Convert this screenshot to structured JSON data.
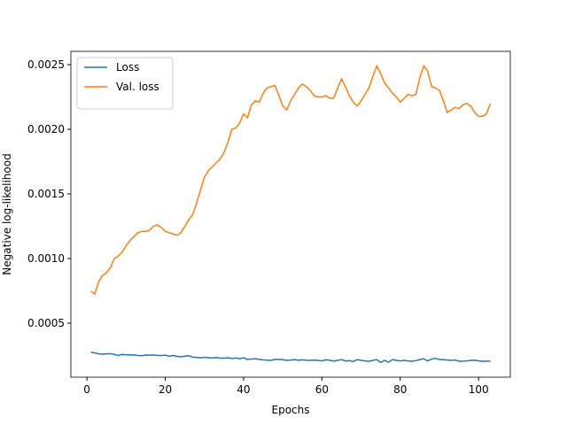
{
  "chart_data": {
    "type": "line",
    "xlabel": "Epochs",
    "ylabel": "Negative log-likelihood",
    "x": [
      1,
      2,
      3,
      4,
      5,
      6,
      7,
      8,
      9,
      10,
      11,
      12,
      13,
      14,
      15,
      16,
      17,
      18,
      19,
      20,
      21,
      22,
      23,
      24,
      25,
      26,
      27,
      28,
      29,
      30,
      31,
      32,
      33,
      34,
      35,
      36,
      37,
      38,
      39,
      40,
      41,
      42,
      43,
      44,
      45,
      46,
      47,
      48,
      49,
      50,
      51,
      52,
      53,
      54,
      55,
      56,
      57,
      58,
      59,
      60,
      61,
      62,
      63,
      64,
      65,
      66,
      67,
      68,
      69,
      70,
      71,
      72,
      73,
      74,
      75,
      76,
      77,
      78,
      79,
      80,
      81,
      82,
      83,
      84,
      85,
      86,
      87,
      88,
      89,
      90,
      91,
      92,
      93,
      94,
      95,
      96,
      97,
      98,
      99,
      100,
      101,
      102,
      103
    ],
    "series": [
      {
        "name": "Loss",
        "color": "#1f77b4",
        "values": [
          0.000275,
          0.00027,
          0.000263,
          0.00026,
          0.000263,
          0.000264,
          0.000258,
          0.00025,
          0.000258,
          0.000255,
          0.000255,
          0.000254,
          0.00025,
          0.000248,
          0.000253,
          0.000252,
          0.000254,
          0.000251,
          0.00025,
          0.000252,
          0.000245,
          0.00025,
          0.000243,
          0.00024,
          0.000245,
          0.000248,
          0.000237,
          0.000235,
          0.000232,
          0.000236,
          0.000233,
          0.00023,
          0.000234,
          0.00023,
          0.000229,
          0.000233,
          0.000227,
          0.000231,
          0.000225,
          0.000232,
          0.00022,
          0.000222,
          0.000224,
          0.00022,
          0.000216,
          0.000214,
          0.000212,
          0.00022,
          0.00022,
          0.000217,
          0.000212,
          0.000214,
          0.000218,
          0.000213,
          0.000216,
          0.000213,
          0.000212,
          0.000214,
          0.000212,
          0.000208,
          0.000216,
          0.000213,
          0.000206,
          0.000212,
          0.000218,
          0.000207,
          0.00021,
          0.000203,
          0.000218,
          0.000212,
          0.000208,
          0.000205,
          0.000212,
          0.000218,
          0.000196,
          0.000212,
          0.000198,
          0.000218,
          0.000212,
          0.000208,
          0.000212,
          0.000208,
          0.000205,
          0.00021,
          0.000218,
          0.000225,
          0.000208,
          0.000222,
          0.000228,
          0.000218,
          0.000218,
          0.000215,
          0.000212,
          0.000215,
          0.000205,
          0.000206,
          0.000208,
          0.000212,
          0.000213,
          0.000208,
          0.000205,
          0.000206,
          0.000206
        ]
      },
      {
        "name": "Val. loss",
        "color": "#ff7f0e",
        "values": [
          0.000747,
          0.000726,
          0.000822,
          0.00087,
          0.00089,
          0.00093,
          0.001,
          0.00102,
          0.00105,
          0.0011,
          0.00114,
          0.00117,
          0.0012,
          0.00121,
          0.00121,
          0.00122,
          0.00125,
          0.00126,
          0.00124,
          0.00121,
          0.0012,
          0.00119,
          0.00118,
          0.0012,
          0.00125,
          0.0013,
          0.00134,
          0.00143,
          0.00153,
          0.00163,
          0.00168,
          0.00171,
          0.00174,
          0.00177,
          0.00182,
          0.0019,
          0.002,
          0.00201,
          0.00205,
          0.00212,
          0.00209,
          0.00219,
          0.00222,
          0.00221,
          0.00228,
          0.00232,
          0.00233,
          0.00234,
          0.00226,
          0.00218,
          0.00215,
          0.00222,
          0.00227,
          0.00232,
          0.00235,
          0.00233,
          0.0023,
          0.00226,
          0.00225,
          0.00225,
          0.00226,
          0.00224,
          0.00224,
          0.00232,
          0.00239,
          0.00233,
          0.00226,
          0.00221,
          0.00218,
          0.00222,
          0.00227,
          0.00232,
          0.00241,
          0.00249,
          0.00243,
          0.00236,
          0.00232,
          0.00228,
          0.00225,
          0.00221,
          0.00224,
          0.00227,
          0.00226,
          0.00227,
          0.0024,
          0.00249,
          0.00245,
          0.00233,
          0.00232,
          0.0023,
          0.00222,
          0.00213,
          0.00215,
          0.00217,
          0.00216,
          0.00219,
          0.0022,
          0.00218,
          0.00213,
          0.0021,
          0.0021,
          0.00212,
          0.0022
        ]
      }
    ],
    "xlim": [
      -4.1,
      108.1
    ],
    "xticks": [
      0,
      20,
      40,
      60,
      80,
      100
    ],
    "ylim": [
      8.2e-05,
      0.002603
    ],
    "yticks": [
      0.0005,
      {
        "value": 0.001,
        "label": "0.0010"
      },
      0.0015,
      {
        "value": 0.002,
        "label": "0.0020"
      },
      0.0025
    ],
    "grid": false,
    "legend": "upper-left"
  }
}
